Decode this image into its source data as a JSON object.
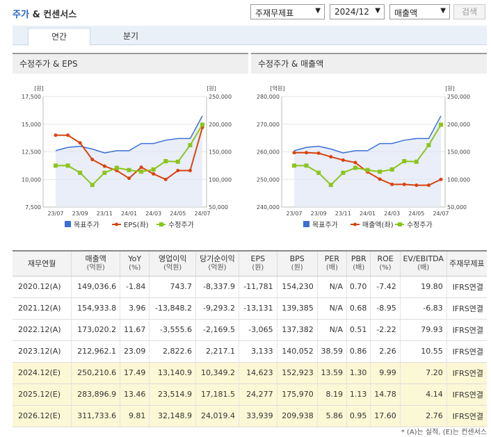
{
  "header": {
    "title_part1": "주가",
    "title_part2": " & 컨센서스",
    "select_type": "주재무제표",
    "select_period": "2024/12",
    "select_metric": "매출액",
    "search_label": "검색"
  },
  "tabs": [
    "연간",
    "분기"
  ],
  "colors": {
    "blue": "#3b6fd6",
    "red": "#d8430f",
    "green": "#8cc41c"
  },
  "charts": [
    {
      "title": "수정주가 & EPS",
      "left_unit": "[원]",
      "right_unit": "[원]",
      "left_ticks": [
        "17,500",
        "15,000",
        "12,500",
        "10,000",
        "7,500"
      ],
      "right_ticks": [
        "250,000",
        "200,000",
        "150,000",
        "100,000",
        "50,000"
      ],
      "x_ticks": [
        "23/07",
        "23/09",
        "23/11",
        "24/01",
        "24/03",
        "24/05",
        "24/07"
      ],
      "legend": [
        "목표주가",
        "EPS(좌)",
        "수정주가"
      ]
    },
    {
      "title": "수정주가 & 매출액",
      "left_unit": "[억원]",
      "right_unit": "[원]",
      "left_ticks": [
        "280,000",
        "270,000",
        "260,000",
        "250,000",
        "240,000"
      ],
      "right_ticks": [
        "250,000",
        "200,000",
        "150,000",
        "100,000",
        "50,000"
      ],
      "x_ticks": [
        "23/07",
        "23/09",
        "23/11",
        "24/01",
        "24/03",
        "24/05",
        "24/07"
      ],
      "legend": [
        "목표주가",
        "매출액(좌)",
        "수정주가"
      ]
    }
  ],
  "chart_data": [
    {
      "type": "line",
      "title": "수정주가 & EPS",
      "x": [
        "23/07",
        "23/08",
        "23/09",
        "23/10",
        "23/11",
        "23/12",
        "24/01",
        "24/02",
        "24/03",
        "24/04",
        "24/05",
        "24/06",
        "24/07"
      ],
      "series": [
        {
          "name": "목표주가",
          "axis": "right",
          "values": [
            152000,
            158000,
            160000,
            155000,
            148000,
            152000,
            152000,
            165000,
            165000,
            171000,
            174000,
            174000,
            215000
          ]
        },
        {
          "name": "EPS(좌)",
          "axis": "left",
          "values": [
            14000,
            14000,
            13300,
            11800,
            11200,
            10800,
            10100,
            11100,
            10500,
            10000,
            10800,
            10800,
            14700
          ]
        },
        {
          "name": "수정주가",
          "axis": "right",
          "values": [
            125000,
            125000,
            112000,
            90000,
            112000,
            121000,
            117000,
            114000,
            118000,
            133000,
            132000,
            162000,
            199000
          ]
        }
      ],
      "ylim_left": [
        7500,
        17500
      ],
      "ylim_right": [
        50000,
        250000
      ]
    },
    {
      "type": "line",
      "title": "수정주가 & 매출액",
      "x": [
        "23/07",
        "23/08",
        "23/09",
        "23/10",
        "23/11",
        "23/12",
        "24/01",
        "24/02",
        "24/03",
        "24/04",
        "24/05",
        "24/06",
        "24/07"
      ],
      "series": [
        {
          "name": "목표주가",
          "axis": "right",
          "values": [
            152000,
            158000,
            160000,
            155000,
            148000,
            152000,
            152000,
            165000,
            165000,
            171000,
            174000,
            174000,
            215000
          ]
        },
        {
          "name": "매출액(좌)",
          "axis": "left",
          "values": [
            259700,
            259700,
            259500,
            258200,
            257000,
            256100,
            252700,
            250100,
            248200,
            248200,
            247900,
            247900,
            250000
          ]
        },
        {
          "name": "수정주가",
          "axis": "right",
          "values": [
            125000,
            125000,
            112000,
            90000,
            112000,
            121000,
            117000,
            114000,
            118000,
            133000,
            132000,
            162000,
            199000
          ]
        }
      ],
      "ylim_left": [
        240000,
        280000
      ],
      "ylim_right": [
        50000,
        250000
      ]
    }
  ],
  "table": {
    "headers": [
      {
        "label": "재무연월",
        "unit": ""
      },
      {
        "label": "매출액",
        "unit": "(억원)"
      },
      {
        "label": "YoY",
        "unit": "(%)"
      },
      {
        "label": "영업이익",
        "unit": "(억원)"
      },
      {
        "label": "당기순이익",
        "unit": "(억원)"
      },
      {
        "label": "EPS",
        "unit": "(원)"
      },
      {
        "label": "BPS",
        "unit": "(원)"
      },
      {
        "label": "PER",
        "unit": "(배)"
      },
      {
        "label": "PBR",
        "unit": "(배)"
      },
      {
        "label": "ROE",
        "unit": "(%)"
      },
      {
        "label": "EV/EBITDA",
        "unit": "(배)"
      },
      {
        "label": "주재무제표",
        "unit": ""
      }
    ],
    "rows": [
      [
        "2020.12(A)",
        "149,036.6",
        "-1.84",
        "743.7",
        "-8,337.9",
        "-11,781",
        "154,230",
        "N/A",
        "0.70",
        "-7.42",
        "19.80",
        "IFRS연결"
      ],
      [
        "2021.12(A)",
        "154,933.8",
        "3.96",
        "-13,848.2",
        "-9,293.2",
        "-13,131",
        "139,385",
        "N/A",
        "0.68",
        "-8.95",
        "-6.83",
        "IFRS연결"
      ],
      [
        "2022.12(A)",
        "173,020.2",
        "11.67",
        "-3,555.6",
        "-2,169.5",
        "-3,065",
        "137,382",
        "N/A",
        "0.51",
        "-2.22",
        "79.93",
        "IFRS연결"
      ],
      [
        "2023.12(A)",
        "212,962.1",
        "23.09",
        "2,822.6",
        "2,217.1",
        "3,133",
        "140,052",
        "38.59",
        "0.86",
        "2.26",
        "10.55",
        "IFRS연결"
      ],
      [
        "2024.12(E)",
        "250,210.6",
        "17.49",
        "13,140.9",
        "10,349.2",
        "14,623",
        "152,923",
        "13.59",
        "1.30",
        "9.99",
        "7.20",
        "IFRS연결"
      ],
      [
        "2025.12(E)",
        "283,896.9",
        "13.46",
        "23,514.9",
        "17,181.5",
        "24,277",
        "175,970",
        "8.19",
        "1.13",
        "14.78",
        "4.14",
        "IFRS연결"
      ],
      [
        "2026.12(E)",
        "311,733.6",
        "9.81",
        "32,148.9",
        "24,019.4",
        "33,939",
        "209,938",
        "5.86",
        "0.95",
        "17.60",
        "2.76",
        "IFRS연결"
      ]
    ]
  },
  "footnote": "* (A)는 실적, (E)는 컨센서스"
}
